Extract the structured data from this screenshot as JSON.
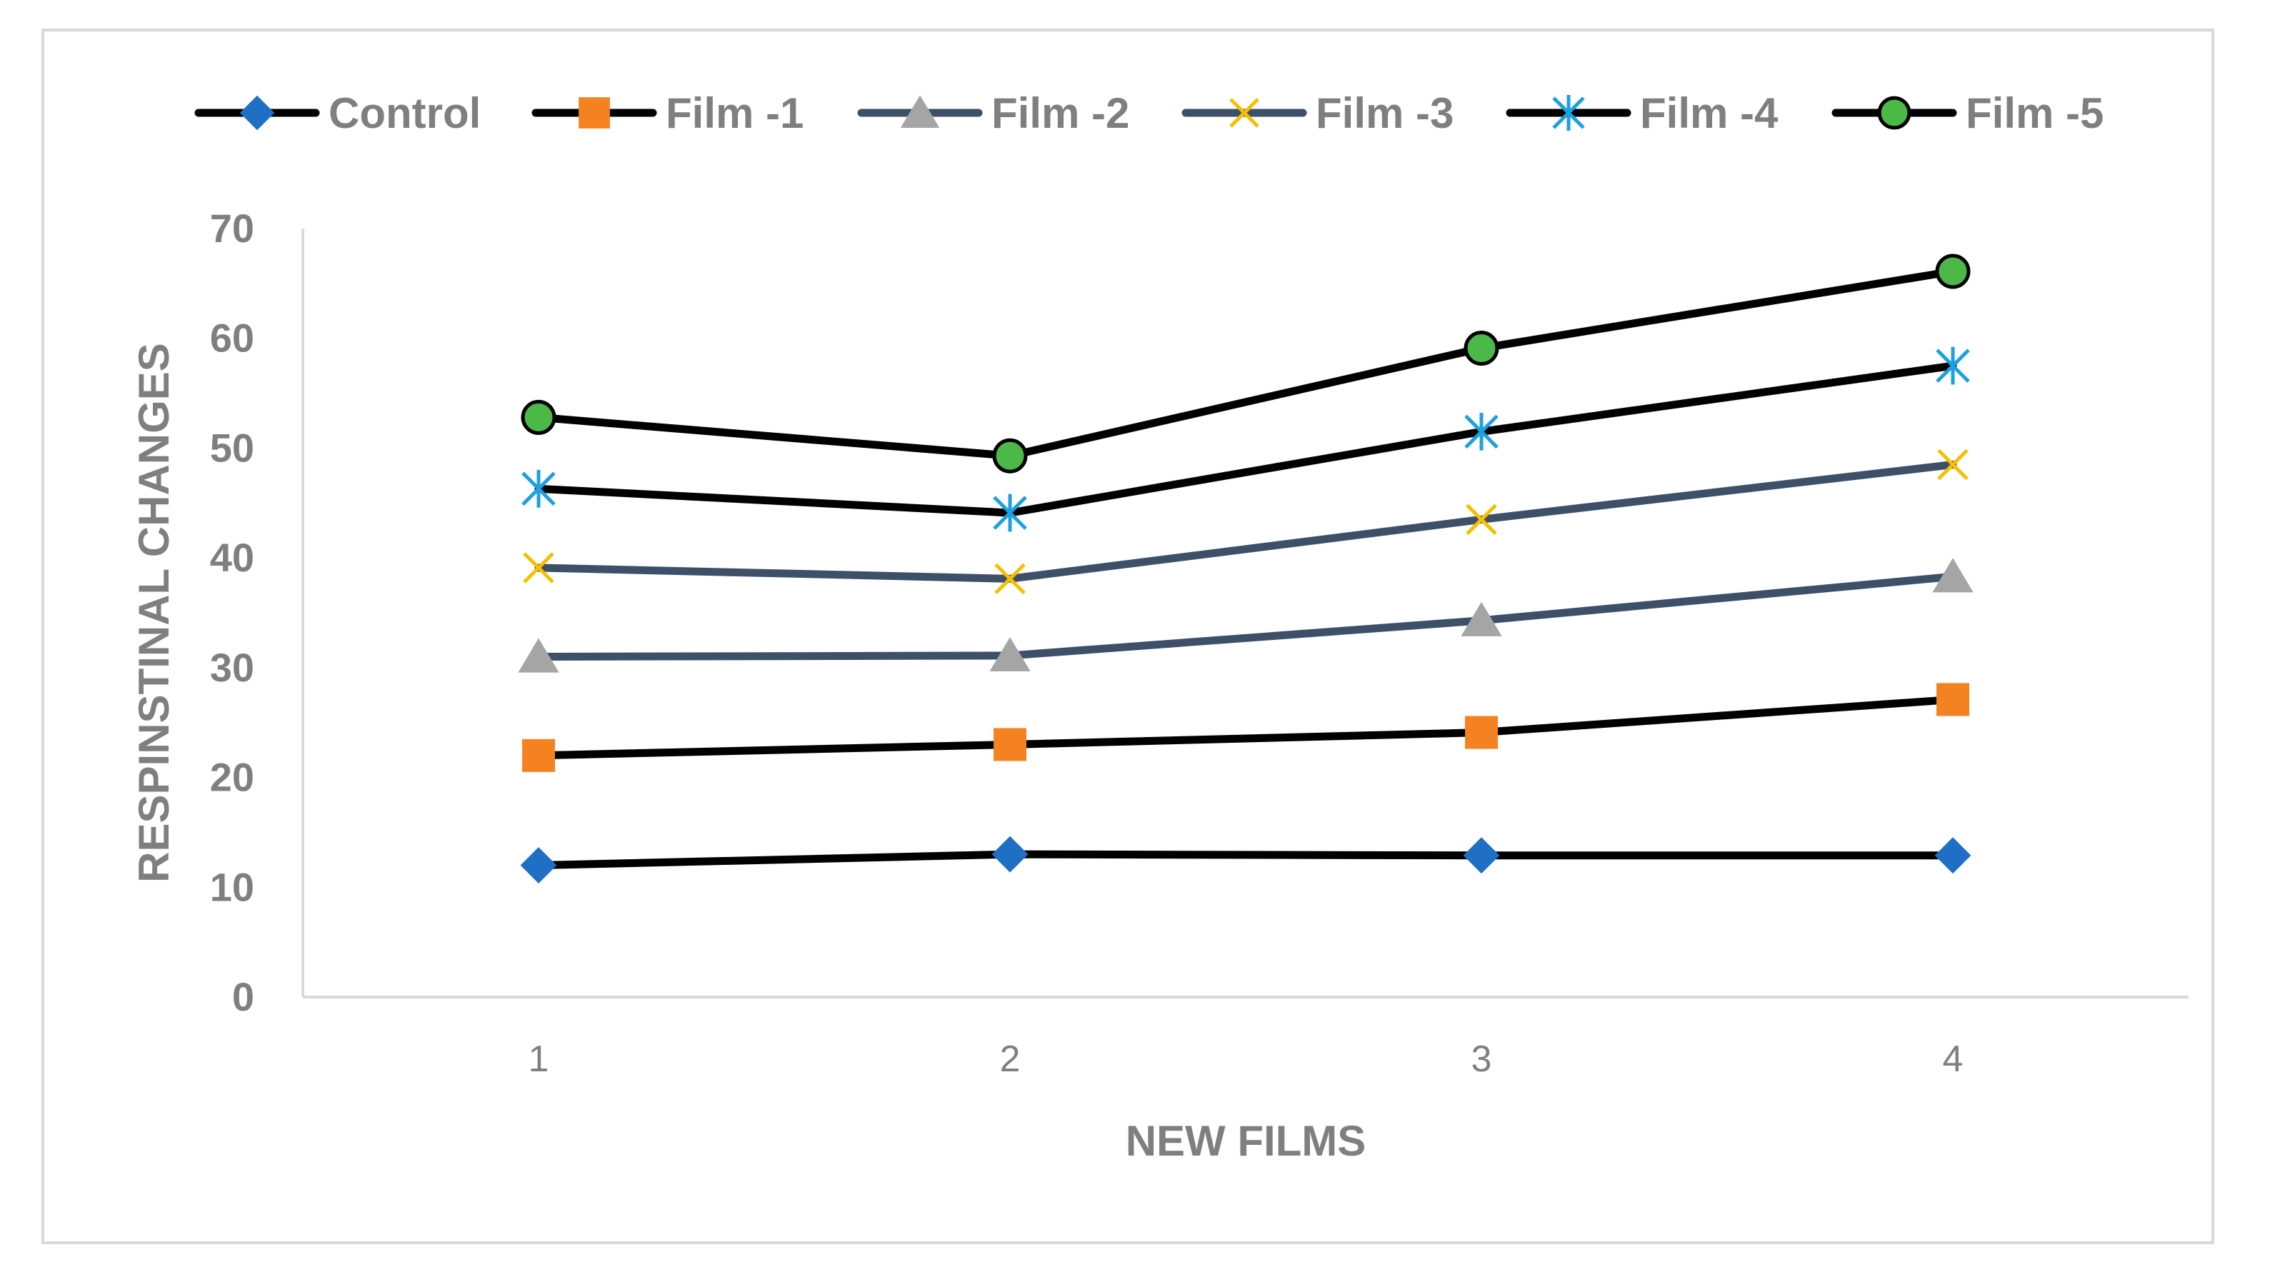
{
  "chart_data": {
    "type": "line",
    "title": "",
    "xlabel": "NEW FILMS",
    "ylabel": "RESPINSTINAL CHANGES",
    "categories": [
      "1",
      "2",
      "3",
      "4"
    ],
    "ylim": [
      0,
      70
    ],
    "yticks": [
      0,
      10,
      20,
      30,
      40,
      50,
      60,
      70
    ],
    "grid": false,
    "legend_position": "top",
    "series": [
      {
        "name": "Control",
        "values": [
          12,
          13,
          12.9,
          12.9
        ],
        "line_color": "#000000",
        "marker": "diamond",
        "marker_color": "#1f6fc5"
      },
      {
        "name": "Film -1",
        "values": [
          22,
          23,
          24.1,
          27.1
        ],
        "line_color": "#000000",
        "marker": "square",
        "marker_color": "#f58220"
      },
      {
        "name": "Film -2",
        "values": [
          31,
          31.1,
          34.3,
          38.3
        ],
        "line_color": "#3d5068",
        "marker": "triangle",
        "marker_color": "#a5a5a5"
      },
      {
        "name": "Film -3",
        "values": [
          39.1,
          38.1,
          43.5,
          48.5
        ],
        "line_color": "#3d5068",
        "marker": "x",
        "marker_color": "#f5c000"
      },
      {
        "name": "Film -4",
        "values": [
          46.3,
          44.1,
          51.5,
          57.5
        ],
        "line_color": "#000000",
        "marker": "asterisk",
        "marker_color": "#1ca0e0"
      },
      {
        "name": "Film -5",
        "values": [
          52.8,
          49.3,
          59.1,
          66.1
        ],
        "line_color": "#000000",
        "marker": "circle",
        "marker_color": "#4cb848"
      }
    ]
  }
}
